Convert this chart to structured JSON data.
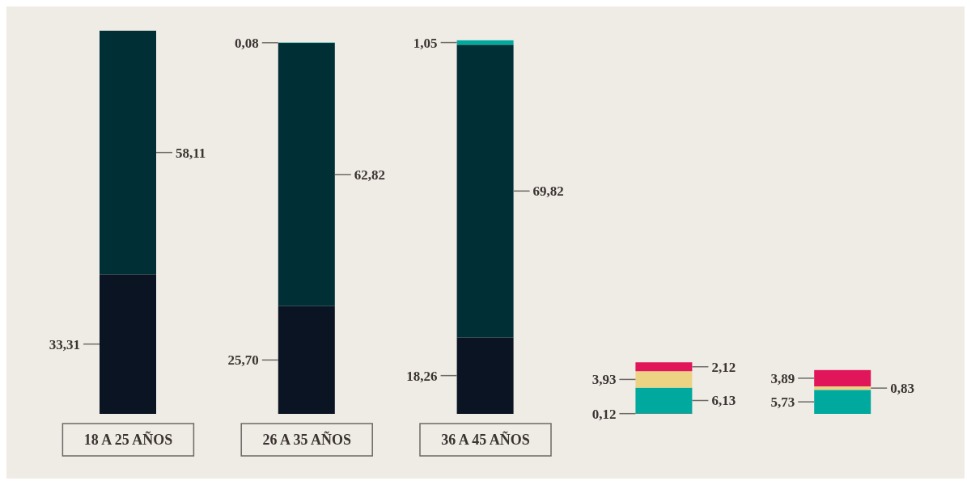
{
  "chart_data": {
    "type": "bar",
    "stacked": true,
    "categories": [
      "18 A 25 AÑOS",
      "26 A 35 AÑOS",
      "36 A 45 AÑOS",
      null,
      null
    ],
    "series": [
      {
        "color": "#0b1422",
        "values": [
          33.31,
          25.7,
          18.26,
          null,
          null
        ],
        "value_labels": [
          "33,31",
          "25,70",
          "18,26",
          null,
          null
        ]
      },
      {
        "color": "#002f36",
        "values": [
          58.11,
          62.82,
          69.82,
          null,
          null
        ],
        "value_labels": [
          "58,11",
          "62,82",
          "69,82",
          null,
          null
        ]
      },
      {
        "color": "#0d4a4c",
        "values": [
          null,
          null,
          null,
          0.12,
          null
        ],
        "value_labels": [
          null,
          null,
          null,
          "0,12",
          null
        ]
      },
      {
        "color": "#00a99d",
        "values": [
          null,
          0.08,
          1.05,
          6.13,
          5.73
        ],
        "value_labels": [
          null,
          "0,08",
          "1,05",
          "6,13",
          "5,73"
        ]
      },
      {
        "color": "#ecd384",
        "values": [
          null,
          null,
          null,
          3.93,
          0.83
        ],
        "value_labels": [
          null,
          null,
          null,
          "3,93",
          "0,83"
        ]
      },
      {
        "color": "#e0155a",
        "values": [
          null,
          null,
          null,
          2.12,
          3.89
        ],
        "value_labels": [
          null,
          null,
          null,
          "2,12",
          "3,89"
        ]
      }
    ]
  }
}
